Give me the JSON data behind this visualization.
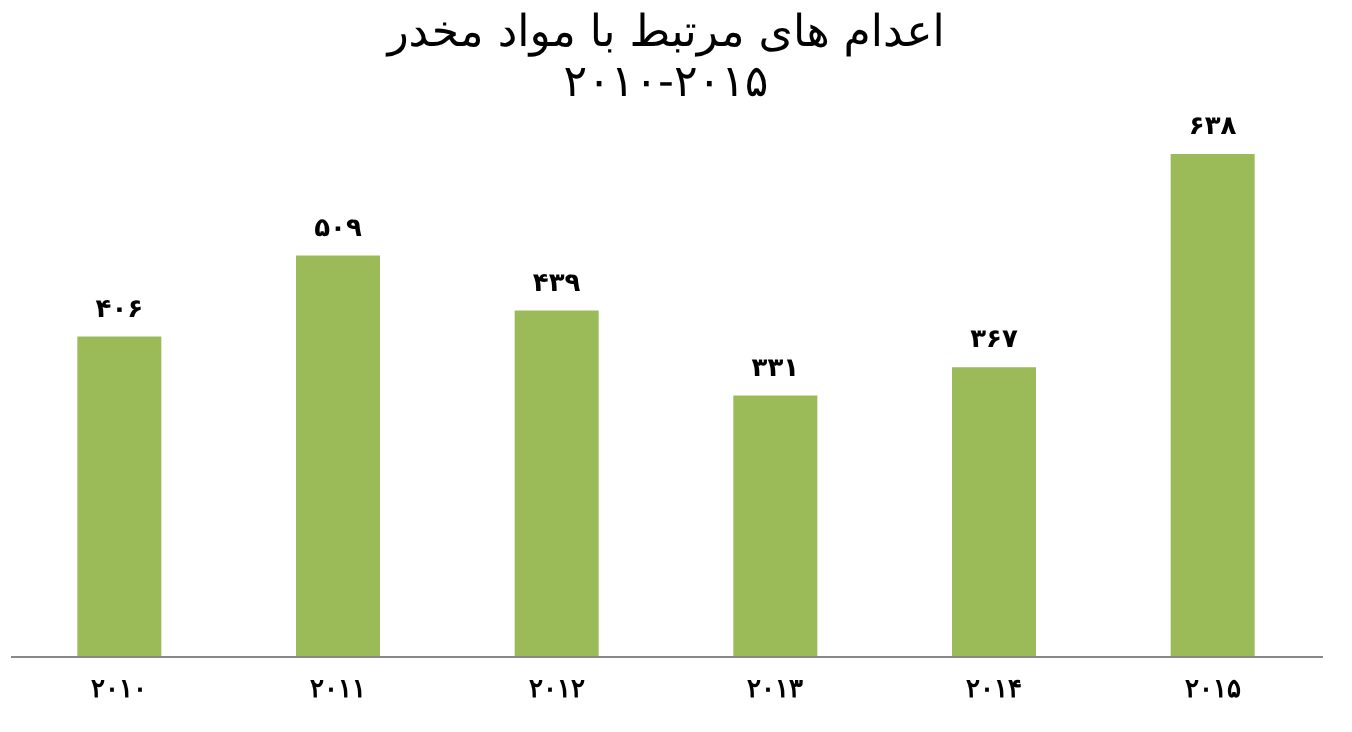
{
  "chart_data": {
    "type": "bar",
    "title": "اعدام های مرتبط با مواد مخدر",
    "subtitle": "۲۰۱۰-۲۰۱۵",
    "categories": [
      "۲۰۱۰",
      "۲۰۱۱",
      "۲۰۱۲",
      "۲۰۱۳",
      "۲۰۱۴",
      "۲۰۱۵"
    ],
    "values": [
      406,
      509,
      439,
      331,
      367,
      638
    ],
    "value_labels": [
      "۴۰۶",
      "۵۰۹",
      "۴۳۹",
      "۳۳۱",
      "۳۶۷",
      "۶۳۸"
    ],
    "color": "#9bbb59"
  }
}
